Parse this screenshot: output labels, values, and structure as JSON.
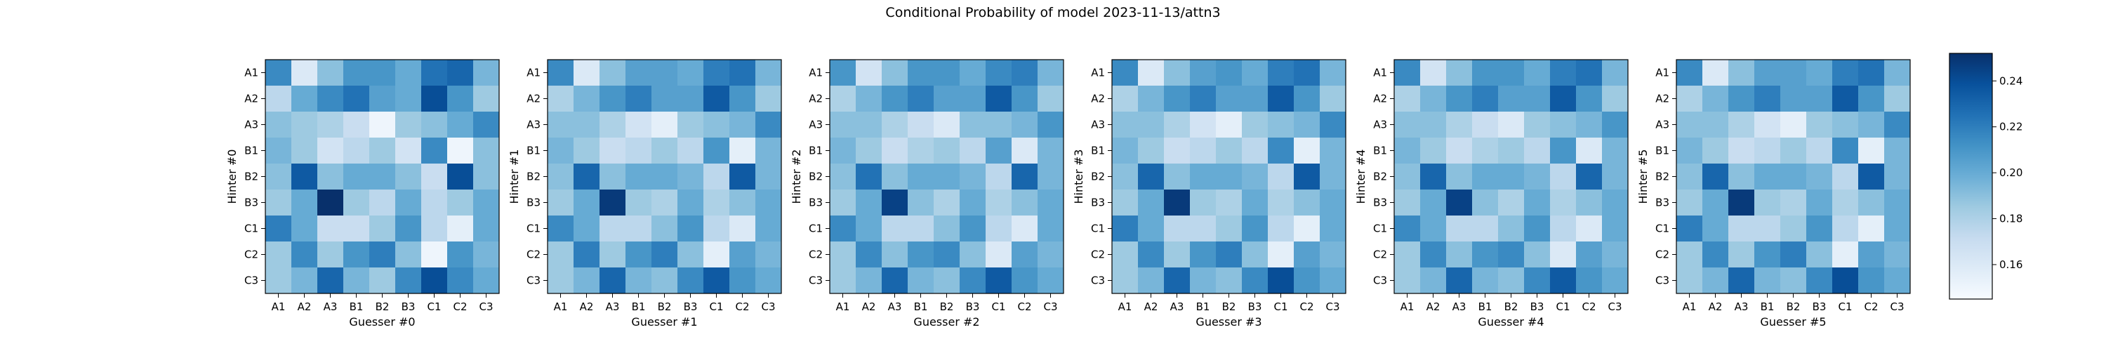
{
  "chart_data": {
    "type": "heatmap",
    "title": "Conditional Probability of model 2023-11-13/attn3",
    "row_labels": [
      "A1",
      "A2",
      "A3",
      "B1",
      "B2",
      "B3",
      "C1",
      "C2",
      "C3"
    ],
    "col_labels": [
      "A1",
      "A2",
      "A3",
      "B1",
      "B2",
      "B3",
      "C1",
      "C2",
      "C3"
    ],
    "colormap": "Blues",
    "colorbar": {
      "min": 0.145,
      "max": 0.252,
      "ticks": [
        "0.16",
        "0.18",
        "0.20",
        "0.22",
        "0.24"
      ],
      "tick_values": [
        0.16,
        0.18,
        0.2,
        0.22,
        0.24
      ]
    },
    "panels": [
      {
        "xlabel": "Guesser #0",
        "ylabel": "Hinter #0",
        "values": [
          [
            0.215,
            0.16,
            0.19,
            0.21,
            0.21,
            0.2,
            0.225,
            0.23,
            0.195
          ],
          [
            0.175,
            0.2,
            0.215,
            0.225,
            0.205,
            0.2,
            0.24,
            0.21,
            0.185
          ],
          [
            0.19,
            0.185,
            0.18,
            0.17,
            0.15,
            0.185,
            0.19,
            0.2,
            0.215
          ],
          [
            0.195,
            0.185,
            0.165,
            0.175,
            0.185,
            0.165,
            0.215,
            0.15,
            0.19
          ],
          [
            0.19,
            0.235,
            0.19,
            0.2,
            0.2,
            0.19,
            0.17,
            0.24,
            0.19
          ],
          [
            0.185,
            0.2,
            0.252,
            0.185,
            0.175,
            0.2,
            0.175,
            0.185,
            0.2
          ],
          [
            0.22,
            0.2,
            0.17,
            0.17,
            0.185,
            0.21,
            0.175,
            0.155,
            0.2
          ],
          [
            0.185,
            0.215,
            0.185,
            0.21,
            0.22,
            0.19,
            0.15,
            0.21,
            0.195
          ],
          [
            0.185,
            0.195,
            0.23,
            0.195,
            0.185,
            0.215,
            0.24,
            0.215,
            0.2
          ]
        ]
      },
      {
        "xlabel": "Guesser #1",
        "ylabel": "Hinter #1",
        "values": [
          [
            0.215,
            0.16,
            0.19,
            0.205,
            0.205,
            0.2,
            0.22,
            0.225,
            0.195
          ],
          [
            0.18,
            0.195,
            0.21,
            0.22,
            0.205,
            0.205,
            0.235,
            0.21,
            0.185
          ],
          [
            0.19,
            0.19,
            0.18,
            0.165,
            0.155,
            0.185,
            0.19,
            0.195,
            0.215
          ],
          [
            0.195,
            0.185,
            0.17,
            0.175,
            0.185,
            0.175,
            0.21,
            0.155,
            0.195
          ],
          [
            0.19,
            0.23,
            0.19,
            0.2,
            0.2,
            0.195,
            0.175,
            0.235,
            0.195
          ],
          [
            0.185,
            0.2,
            0.248,
            0.185,
            0.18,
            0.2,
            0.18,
            0.19,
            0.2
          ],
          [
            0.215,
            0.2,
            0.175,
            0.175,
            0.19,
            0.21,
            0.175,
            0.16,
            0.2
          ],
          [
            0.185,
            0.22,
            0.185,
            0.21,
            0.22,
            0.19,
            0.155,
            0.205,
            0.195
          ],
          [
            0.185,
            0.195,
            0.23,
            0.195,
            0.19,
            0.215,
            0.235,
            0.21,
            0.2
          ]
        ]
      },
      {
        "xlabel": "Guesser #2",
        "ylabel": "Hinter #2",
        "values": [
          [
            0.21,
            0.165,
            0.19,
            0.21,
            0.21,
            0.2,
            0.215,
            0.22,
            0.195
          ],
          [
            0.18,
            0.195,
            0.21,
            0.22,
            0.205,
            0.205,
            0.235,
            0.21,
            0.185
          ],
          [
            0.19,
            0.19,
            0.18,
            0.17,
            0.16,
            0.19,
            0.19,
            0.195,
            0.21
          ],
          [
            0.195,
            0.185,
            0.17,
            0.18,
            0.185,
            0.175,
            0.205,
            0.16,
            0.195
          ],
          [
            0.19,
            0.225,
            0.19,
            0.2,
            0.2,
            0.195,
            0.175,
            0.23,
            0.195
          ],
          [
            0.185,
            0.2,
            0.245,
            0.19,
            0.18,
            0.2,
            0.18,
            0.19,
            0.2
          ],
          [
            0.215,
            0.2,
            0.175,
            0.175,
            0.19,
            0.21,
            0.175,
            0.16,
            0.2
          ],
          [
            0.185,
            0.215,
            0.19,
            0.21,
            0.215,
            0.19,
            0.16,
            0.205,
            0.195
          ],
          [
            0.185,
            0.195,
            0.23,
            0.195,
            0.19,
            0.215,
            0.235,
            0.21,
            0.2
          ]
        ]
      },
      {
        "xlabel": "Guesser #3",
        "ylabel": "Hinter #3",
        "values": [
          [
            0.215,
            0.16,
            0.19,
            0.205,
            0.21,
            0.2,
            0.22,
            0.225,
            0.195
          ],
          [
            0.18,
            0.195,
            0.21,
            0.22,
            0.205,
            0.205,
            0.235,
            0.21,
            0.185
          ],
          [
            0.19,
            0.19,
            0.18,
            0.165,
            0.155,
            0.185,
            0.19,
            0.195,
            0.215
          ],
          [
            0.195,
            0.185,
            0.17,
            0.175,
            0.185,
            0.175,
            0.215,
            0.155,
            0.195
          ],
          [
            0.19,
            0.23,
            0.19,
            0.2,
            0.2,
            0.195,
            0.175,
            0.235,
            0.195
          ],
          [
            0.185,
            0.2,
            0.248,
            0.185,
            0.18,
            0.2,
            0.18,
            0.19,
            0.2
          ],
          [
            0.22,
            0.2,
            0.175,
            0.175,
            0.185,
            0.21,
            0.175,
            0.155,
            0.2
          ],
          [
            0.185,
            0.215,
            0.185,
            0.21,
            0.22,
            0.19,
            0.155,
            0.205,
            0.195
          ],
          [
            0.185,
            0.195,
            0.23,
            0.195,
            0.19,
            0.215,
            0.24,
            0.21,
            0.2
          ]
        ]
      },
      {
        "xlabel": "Guesser #4",
        "ylabel": "Hinter #4",
        "values": [
          [
            0.215,
            0.165,
            0.19,
            0.21,
            0.21,
            0.2,
            0.22,
            0.225,
            0.195
          ],
          [
            0.18,
            0.195,
            0.21,
            0.22,
            0.205,
            0.205,
            0.235,
            0.21,
            0.185
          ],
          [
            0.19,
            0.19,
            0.18,
            0.17,
            0.16,
            0.185,
            0.19,
            0.195,
            0.21
          ],
          [
            0.195,
            0.185,
            0.17,
            0.18,
            0.185,
            0.175,
            0.21,
            0.16,
            0.195
          ],
          [
            0.19,
            0.23,
            0.19,
            0.2,
            0.2,
            0.195,
            0.175,
            0.23,
            0.195
          ],
          [
            0.185,
            0.2,
            0.245,
            0.19,
            0.18,
            0.2,
            0.18,
            0.19,
            0.2
          ],
          [
            0.215,
            0.2,
            0.175,
            0.175,
            0.19,
            0.21,
            0.175,
            0.16,
            0.2
          ],
          [
            0.185,
            0.215,
            0.19,
            0.21,
            0.215,
            0.19,
            0.16,
            0.205,
            0.195
          ],
          [
            0.185,
            0.195,
            0.23,
            0.195,
            0.19,
            0.215,
            0.235,
            0.21,
            0.2
          ]
        ]
      },
      {
        "xlabel": "Guesser #5",
        "ylabel": "Hinter #5",
        "values": [
          [
            0.215,
            0.16,
            0.19,
            0.205,
            0.205,
            0.2,
            0.22,
            0.225,
            0.195
          ],
          [
            0.18,
            0.195,
            0.21,
            0.22,
            0.205,
            0.205,
            0.235,
            0.21,
            0.185
          ],
          [
            0.19,
            0.19,
            0.18,
            0.165,
            0.155,
            0.185,
            0.19,
            0.195,
            0.215
          ],
          [
            0.195,
            0.185,
            0.17,
            0.175,
            0.185,
            0.175,
            0.215,
            0.155,
            0.195
          ],
          [
            0.19,
            0.23,
            0.19,
            0.2,
            0.2,
            0.195,
            0.175,
            0.235,
            0.195
          ],
          [
            0.185,
            0.2,
            0.248,
            0.185,
            0.18,
            0.2,
            0.18,
            0.19,
            0.2
          ],
          [
            0.22,
            0.2,
            0.175,
            0.175,
            0.185,
            0.21,
            0.175,
            0.155,
            0.2
          ],
          [
            0.185,
            0.215,
            0.185,
            0.21,
            0.22,
            0.19,
            0.155,
            0.205,
            0.195
          ],
          [
            0.185,
            0.195,
            0.23,
            0.195,
            0.19,
            0.215,
            0.24,
            0.21,
            0.2
          ]
        ]
      }
    ]
  }
}
